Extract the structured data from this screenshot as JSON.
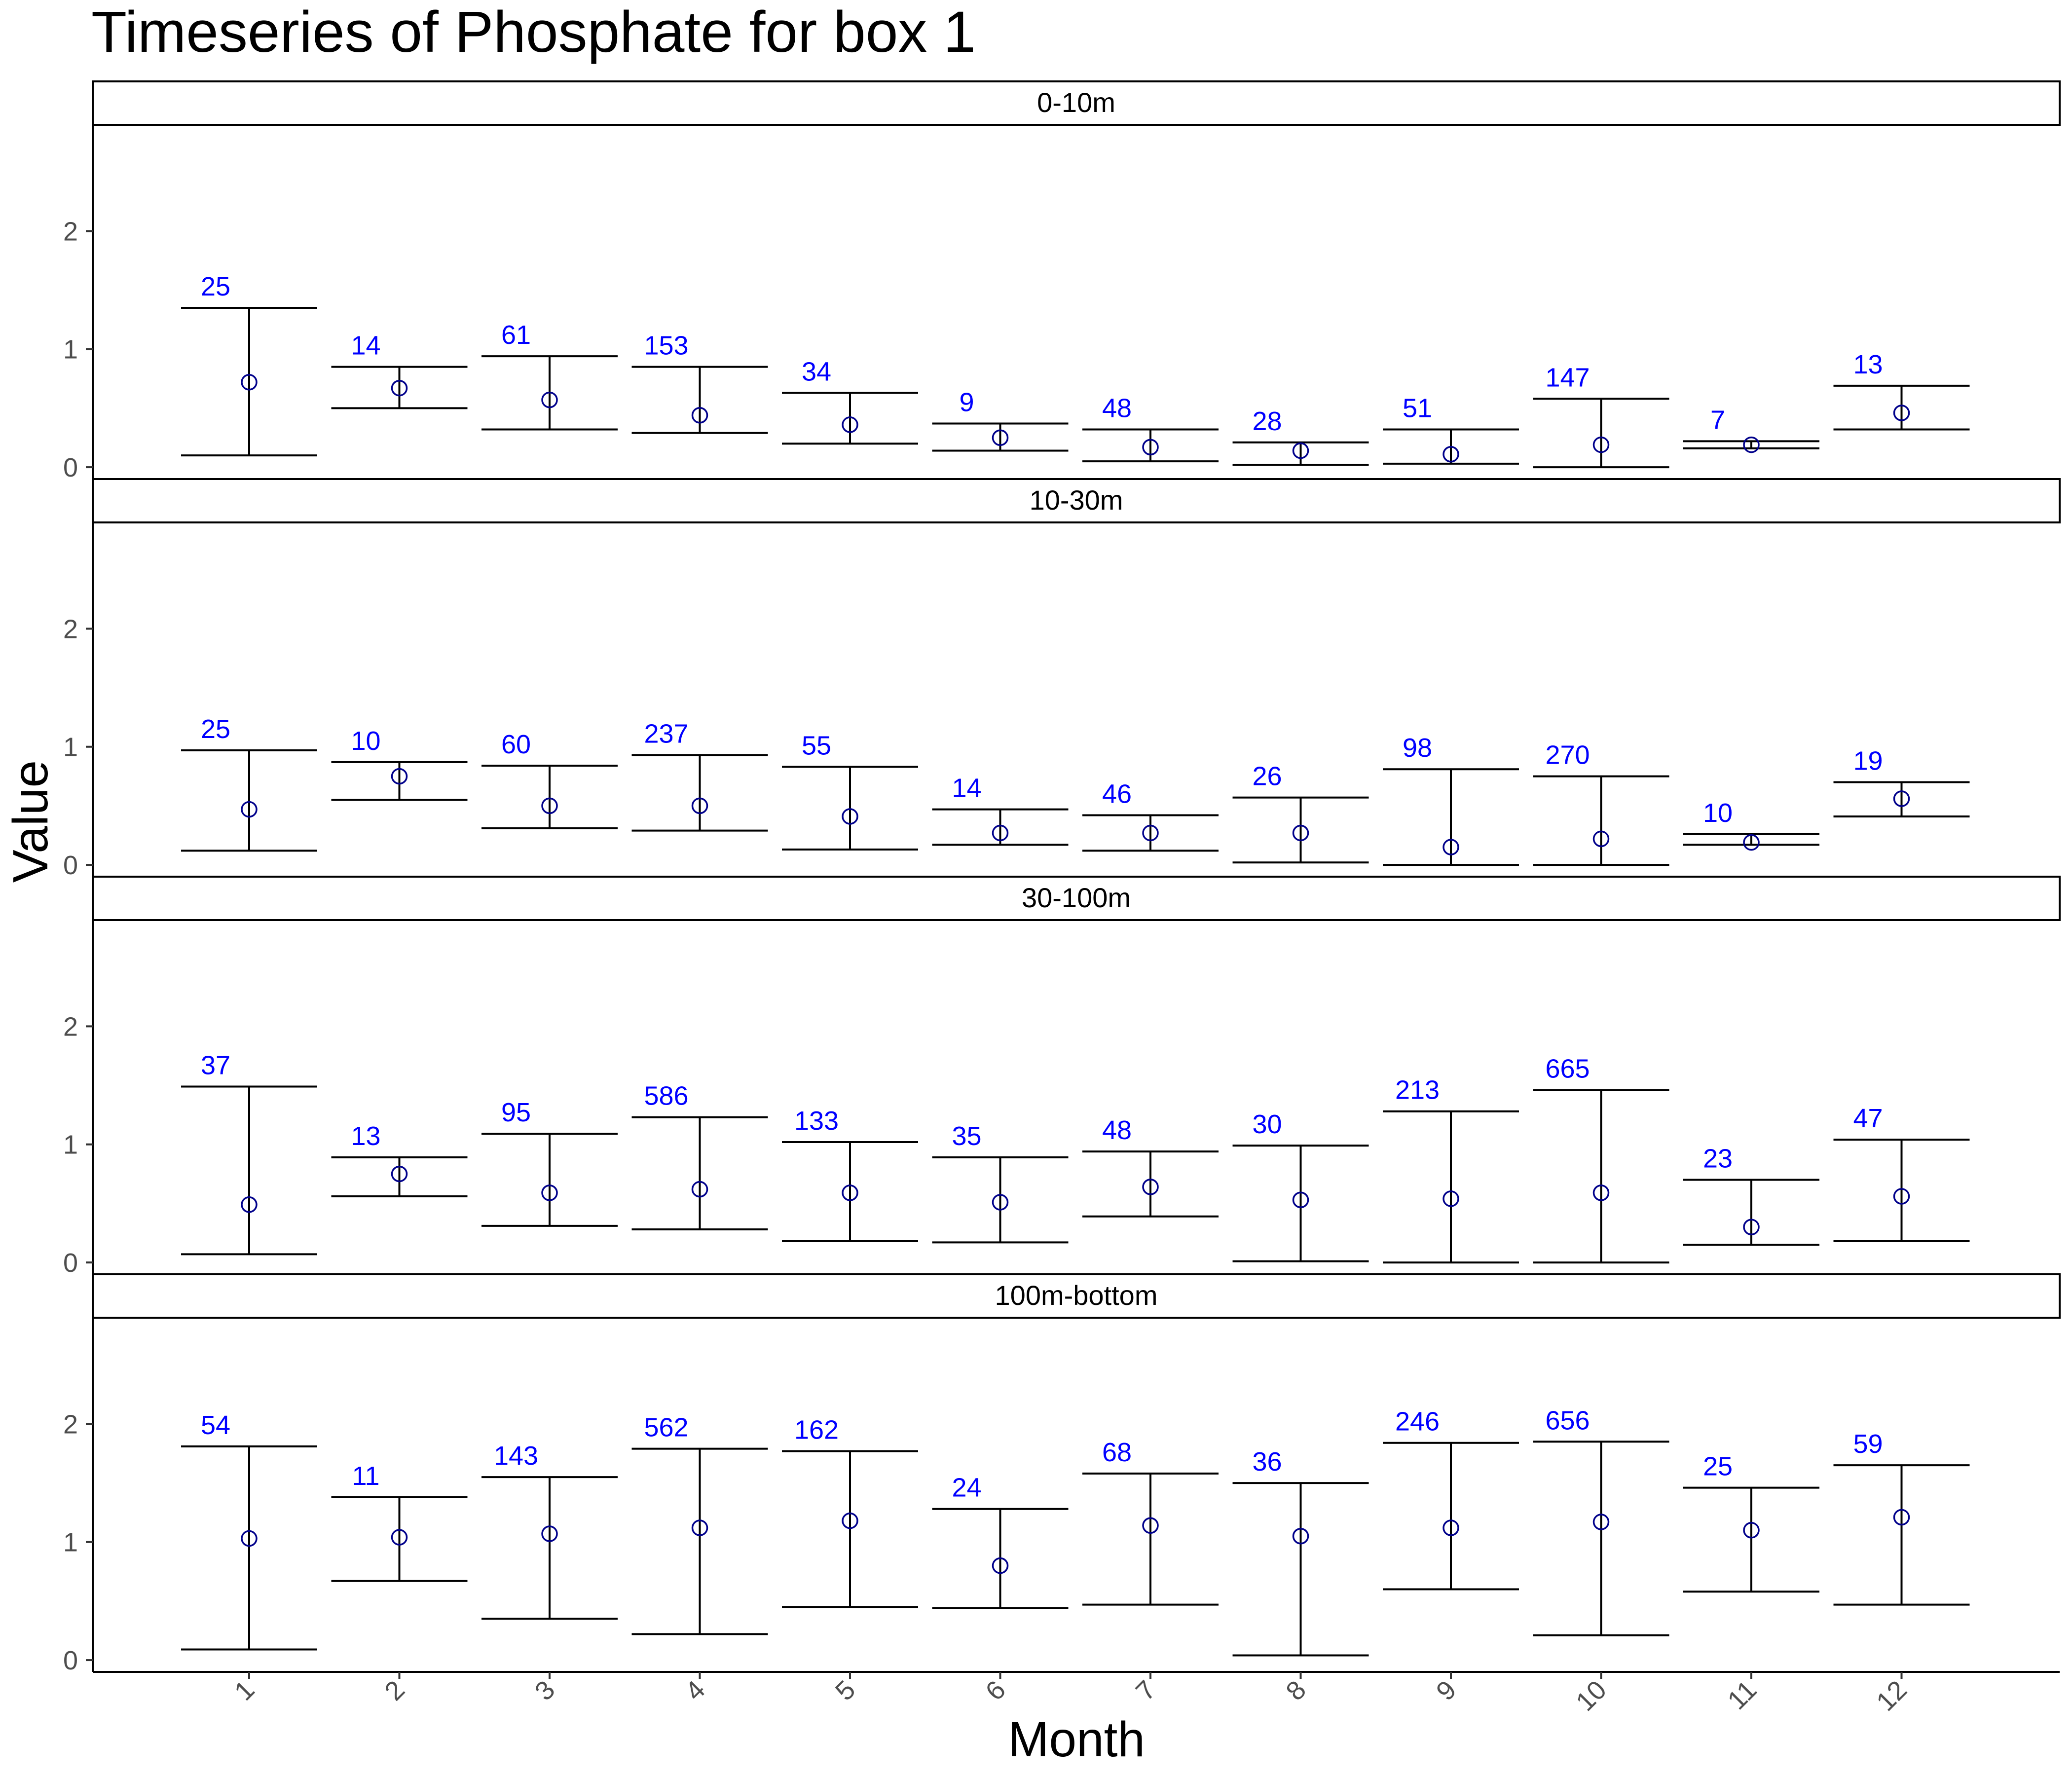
{
  "chart_data": {
    "type": "errorbar",
    "title": "Timeseries of  Phosphate  for box  1",
    "xlabel": "Month",
    "ylabel": "Value",
    "x": [
      "1",
      "2",
      "3",
      "4",
      "5",
      "6",
      "7",
      "8",
      "9",
      "10",
      "11",
      "12"
    ],
    "yticks": [
      0,
      1,
      2
    ],
    "ylim": [
      -0.1,
      2.9
    ],
    "grid": false,
    "label_color": "#0000ff",
    "point_color": "#00008b",
    "bar_color": "#000000",
    "panels": [
      {
        "strip": "0-10m",
        "mean": [
          0.72,
          0.67,
          0.57,
          0.44,
          0.36,
          0.25,
          0.17,
          0.14,
          0.11,
          0.19,
          0.19,
          0.46
        ],
        "lower": [
          0.1,
          0.5,
          0.32,
          0.29,
          0.2,
          0.14,
          0.05,
          0.02,
          0.03,
          0.0,
          0.16,
          0.32
        ],
        "upper": [
          1.35,
          0.85,
          0.94,
          0.85,
          0.63,
          0.37,
          0.32,
          0.21,
          0.32,
          0.58,
          0.22,
          0.69
        ],
        "n": [
          "25",
          "14",
          "61",
          "153",
          "34",
          "9",
          "48",
          "28",
          "51",
          "147",
          "7",
          "13"
        ]
      },
      {
        "strip": "10-30m",
        "mean": [
          0.47,
          0.75,
          0.5,
          0.5,
          0.41,
          0.27,
          0.27,
          0.27,
          0.15,
          0.22,
          0.19,
          0.56
        ],
        "lower": [
          0.12,
          0.55,
          0.31,
          0.29,
          0.13,
          0.17,
          0.12,
          0.02,
          0.0,
          0.0,
          0.17,
          0.41
        ],
        "upper": [
          0.97,
          0.87,
          0.84,
          0.93,
          0.83,
          0.47,
          0.42,
          0.57,
          0.81,
          0.75,
          0.26,
          0.7
        ],
        "n": [
          "25",
          "10",
          "60",
          "237",
          "55",
          "14",
          "46",
          "26",
          "98",
          "270",
          "10",
          "19"
        ]
      },
      {
        "strip": "30-100m",
        "mean": [
          0.49,
          0.75,
          0.59,
          0.62,
          0.59,
          0.51,
          0.64,
          0.53,
          0.54,
          0.59,
          0.3,
          0.56
        ],
        "lower": [
          0.07,
          0.56,
          0.31,
          0.28,
          0.18,
          0.17,
          0.39,
          0.01,
          0.0,
          0.0,
          0.15,
          0.18
        ],
        "upper": [
          1.49,
          0.89,
          1.09,
          1.23,
          1.02,
          0.89,
          0.94,
          0.99,
          1.28,
          1.46,
          0.7,
          1.04
        ],
        "n": [
          "37",
          "13",
          "95",
          "586",
          "133",
          "35",
          "48",
          "30",
          "213",
          "665",
          "23",
          "47"
        ]
      },
      {
        "strip": "100m-bottom",
        "mean": [
          1.03,
          1.04,
          1.07,
          1.12,
          1.18,
          0.8,
          1.14,
          1.05,
          1.12,
          1.17,
          1.1,
          1.21
        ],
        "lower": [
          0.09,
          0.67,
          0.35,
          0.22,
          0.45,
          0.44,
          0.47,
          0.04,
          0.6,
          0.21,
          0.58,
          0.47
        ],
        "upper": [
          1.81,
          1.38,
          1.55,
          1.79,
          1.77,
          1.28,
          1.58,
          1.5,
          1.84,
          1.85,
          1.46,
          1.65
        ],
        "n": [
          "54",
          "11",
          "143",
          "562",
          "162",
          "24",
          "68",
          "36",
          "246",
          "656",
          "25",
          "59"
        ]
      }
    ]
  }
}
